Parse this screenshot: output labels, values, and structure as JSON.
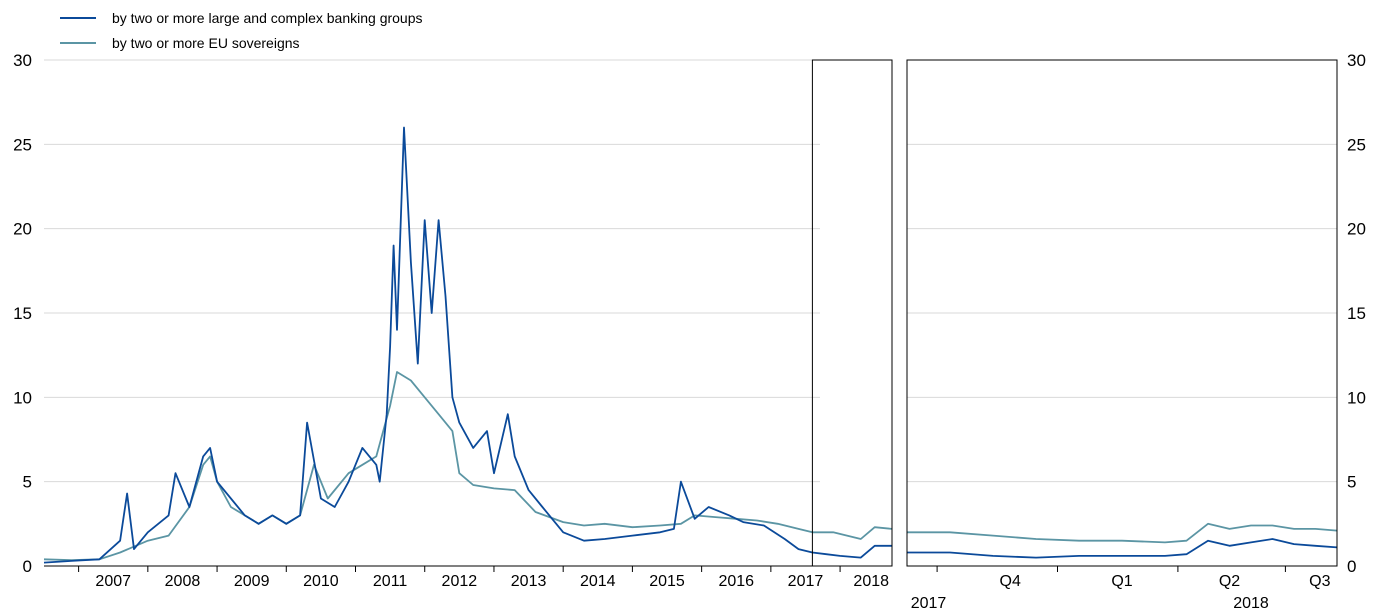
{
  "chart_data": {
    "type": "line",
    "legend": [
      {
        "label": "by two or more large and complex banking groups",
        "color": "#0b4a9a"
      },
      {
        "label": "by two or more EU sovereigns",
        "color": "#5b95a4"
      }
    ],
    "ylim": [
      0,
      30
    ],
    "y_ticks": [
      0,
      5,
      10,
      15,
      20,
      25,
      30
    ],
    "y_tick_labels": [
      "0",
      "5",
      "10",
      "15",
      "20",
      "25",
      "30"
    ],
    "right_y_ticks": [
      0,
      5,
      10,
      15,
      20,
      25,
      30
    ],
    "right_y_tick_labels": [
      "0",
      "5",
      "10",
      "15",
      "20",
      "25",
      "30"
    ],
    "grid": "horizontal",
    "legend_position": "top-left",
    "left_panel": {
      "x_range": [
        2006.5,
        2018.75
      ],
      "x_tick_labels": [
        "2007",
        "2008",
        "2009",
        "2010",
        "2011",
        "2012",
        "2013",
        "2014",
        "2015",
        "2016",
        "2017",
        "2018"
      ],
      "highlight_x_range": [
        2017.6,
        2018.75
      ],
      "series": [
        {
          "name": "by two or more large and complex banking groups",
          "color": "#0b4a9a",
          "x": [
            2006.5,
            2006.9,
            2007.3,
            2007.6,
            2007.7,
            2007.8,
            2008.0,
            2008.3,
            2008.4,
            2008.6,
            2008.8,
            2008.9,
            2009.0,
            2009.2,
            2009.4,
            2009.6,
            2009.8,
            2010.0,
            2010.2,
            2010.3,
            2010.5,
            2010.7,
            2010.9,
            2011.1,
            2011.3,
            2011.35,
            2011.45,
            2011.5,
            2011.55,
            2011.6,
            2011.7,
            2011.8,
            2011.9,
            2012.0,
            2012.1,
            2012.2,
            2012.3,
            2012.4,
            2012.5,
            2012.7,
            2012.9,
            2013.0,
            2013.2,
            2013.3,
            2013.5,
            2013.7,
            2014.0,
            2014.3,
            2014.6,
            2015.0,
            2015.4,
            2015.6,
            2015.7,
            2015.9,
            2016.1,
            2016.4,
            2016.6,
            2016.9,
            2017.2,
            2017.4,
            2017.6,
            2017.8,
            2018.0,
            2018.3,
            2018.5,
            2018.75
          ],
          "y": [
            0.2,
            0.3,
            0.4,
            1.5,
            4.3,
            1.0,
            2.0,
            3.0,
            5.5,
            3.5,
            6.5,
            7.0,
            5.0,
            4.0,
            3.0,
            2.5,
            3.0,
            2.5,
            3.0,
            8.5,
            4.0,
            3.5,
            5.0,
            7.0,
            6.0,
            5.0,
            9.0,
            13.0,
            19.0,
            14.0,
            26.0,
            18.0,
            12.0,
            20.5,
            15.0,
            20.5,
            16.0,
            10.0,
            8.5,
            7.0,
            8.0,
            5.5,
            9.0,
            6.5,
            4.5,
            3.5,
            2.0,
            1.5,
            1.6,
            1.8,
            2.0,
            2.2,
            5.0,
            2.8,
            3.5,
            3.0,
            2.6,
            2.4,
            1.6,
            1.0,
            0.8,
            0.7,
            0.6,
            0.5,
            1.2,
            1.2
          ]
        },
        {
          "name": "by two or more EU sovereigns",
          "color": "#5b95a4",
          "x": [
            2006.5,
            2006.9,
            2007.3,
            2007.6,
            2008.0,
            2008.3,
            2008.6,
            2008.8,
            2008.9,
            2009.0,
            2009.2,
            2009.4,
            2009.6,
            2009.8,
            2010.0,
            2010.2,
            2010.4,
            2010.6,
            2010.9,
            2011.1,
            2011.3,
            2011.5,
            2011.6,
            2011.8,
            2012.0,
            2012.2,
            2012.4,
            2012.5,
            2012.7,
            2013.0,
            2013.3,
            2013.6,
            2014.0,
            2014.3,
            2014.6,
            2015.0,
            2015.4,
            2015.7,
            2015.9,
            2016.2,
            2016.5,
            2016.8,
            2017.1,
            2017.4,
            2017.6,
            2017.9,
            2018.1,
            2018.3,
            2018.5,
            2018.75
          ],
          "y": [
            0.4,
            0.35,
            0.4,
            0.8,
            1.5,
            1.8,
            3.5,
            6.0,
            6.5,
            5.0,
            3.5,
            3.0,
            2.5,
            3.0,
            2.5,
            3.0,
            6.0,
            4.0,
            5.5,
            6.0,
            6.5,
            9.5,
            11.5,
            11.0,
            10.0,
            9.0,
            8.0,
            5.5,
            4.8,
            4.6,
            4.5,
            3.2,
            2.6,
            2.4,
            2.5,
            2.3,
            2.4,
            2.5,
            3.0,
            2.9,
            2.8,
            2.7,
            2.5,
            2.2,
            2.0,
            2.0,
            1.8,
            1.6,
            2.3,
            2.2
          ]
        }
      ]
    },
    "right_panel": {
      "x_range": [
        0,
        1
      ],
      "x_tick_labels": [
        "Q4",
        "Q1",
        "Q2",
        "Q3"
      ],
      "year_labels": [
        "2017",
        "2018"
      ],
      "series": [
        {
          "name": "by two or more large and complex banking groups",
          "color": "#0b4a9a",
          "x": [
            0.0,
            0.1,
            0.2,
            0.3,
            0.4,
            0.5,
            0.6,
            0.65,
            0.7,
            0.75,
            0.8,
            0.85,
            0.9,
            0.95,
            1.0
          ],
          "y": [
            0.8,
            0.8,
            0.6,
            0.5,
            0.6,
            0.6,
            0.6,
            0.7,
            1.5,
            1.2,
            1.4,
            1.6,
            1.3,
            1.2,
            1.1
          ]
        },
        {
          "name": "by two or more EU sovereigns",
          "color": "#5b95a4",
          "x": [
            0.0,
            0.1,
            0.2,
            0.3,
            0.4,
            0.5,
            0.6,
            0.65,
            0.7,
            0.75,
            0.8,
            0.85,
            0.9,
            0.95,
            1.0
          ],
          "y": [
            2.0,
            2.0,
            1.8,
            1.6,
            1.5,
            1.5,
            1.4,
            1.5,
            2.5,
            2.2,
            2.4,
            2.4,
            2.2,
            2.2,
            2.1
          ]
        }
      ]
    }
  }
}
